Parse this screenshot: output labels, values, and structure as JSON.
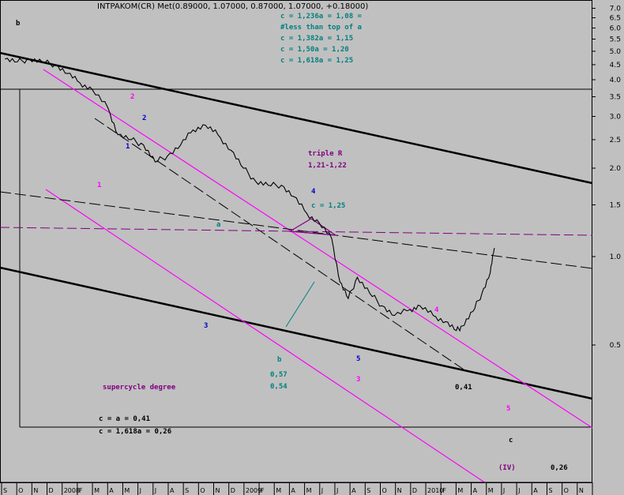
{
  "colors": {
    "background": "#c0c0c0",
    "price": "#000000",
    "channel": "#ff00ff",
    "teal": "#008080",
    "blue": "#0000cc",
    "purple": "#800080"
  },
  "chart_data": {
    "type": "line",
    "title": "INTPAKOM(CR) Met(0.89000, 1.07000, 0.87000, 1.07000, +0.18000)",
    "y_scale": "log",
    "ylim": [
      0.22,
      7.5
    ],
    "xlabel": "",
    "ylabel": "",
    "grid": false,
    "y_ticks": [
      "7.0",
      "6.5",
      "6.0",
      "5.5",
      "5.0",
      "4.5",
      "4.0",
      "3.5",
      "3.0",
      "2.5",
      "2.0",
      "1.5",
      "1.0",
      "0.5"
    ],
    "x_ticks": [
      "S",
      "O",
      "N",
      "D",
      "2008",
      "F",
      "M",
      "A",
      "M",
      "J",
      "J",
      "A",
      "S",
      "O",
      "N",
      "D",
      "2009",
      "F",
      "M",
      "A",
      "M",
      "J",
      "J",
      "A",
      "S",
      "O",
      "N",
      "D",
      "2010",
      "F",
      "M",
      "A",
      "M",
      "J",
      "J",
      "A",
      "S",
      "O",
      "N"
    ],
    "series": [
      {
        "x": [
          "2007-09-05",
          "2007-09-20",
          "2007-10-05",
          "2007-10-20",
          "2007-11-05",
          "2007-11-20",
          "2007-12-05",
          "2007-12-20",
          "2008-01-08",
          "2008-01-20",
          "2008-02-05",
          "2008-02-20",
          "2008-03-05",
          "2008-03-20",
          "2008-04-05",
          "2008-04-20",
          "2008-05-05",
          "2008-05-20",
          "2008-06-05",
          "2008-06-20",
          "2008-07-05",
          "2008-07-20",
          "2008-08-05",
          "2008-08-20",
          "2008-09-05",
          "2008-09-20",
          "2008-10-05",
          "2008-10-15",
          "2008-10-25",
          "2008-11-05",
          "2008-11-20",
          "2008-12-05",
          "2008-12-20",
          "2009-01-08",
          "2009-01-20",
          "2009-02-05",
          "2009-02-20",
          "2009-03-05",
          "2009-03-12",
          "2009-03-25",
          "2009-04-05",
          "2009-04-15",
          "2009-04-20"
        ],
        "values": [
          4.7,
          4.6,
          4.7,
          4.6,
          4.5,
          4.2,
          3.9,
          3.7,
          3.2,
          2.6,
          2.5,
          2.4,
          2.1,
          2.2,
          2.4,
          2.7,
          2.8,
          2.6,
          2.3,
          2.0,
          1.8,
          1.75,
          1.75,
          1.6,
          1.4,
          1.3,
          1.15,
          0.82,
          0.72,
          0.85,
          0.75,
          0.68,
          0.63,
          0.66,
          0.68,
          0.63,
          0.6,
          0.56,
          0.58,
          0.65,
          0.75,
          0.88,
          1.07
        ]
      }
    ],
    "annotations": {
      "b_top": "b",
      "wave2_mag": "2",
      "wave2_blue": "2",
      "wave1_blue": "1",
      "wave1_mag": "1",
      "wave3_blue": "3",
      "wave_a": "a",
      "wave4_blue": "4",
      "wave_b": "b",
      "wave4_mag": "4",
      "wave5_blue": "5",
      "wave3_mag": "3",
      "wave5_mag": "5",
      "wave_c": "c",
      "wave_IV": "(IV)",
      "fib1": "c = 1,236a = 1,08 =",
      "fib2": "#less than top of a",
      "fib3": "c = 1,382a = 1,15",
      "fib4": "c = 1,50a = 1,20",
      "fib5": "c = 1,618a = 1,25",
      "tripleR1": "triple R",
      "tripleR2": "1,21-1,22",
      "c125": "c = 1,25",
      "low1": "0,57",
      "low2": "0,54",
      "degree": "supercycle degree",
      "ca1": "c = a = 0,41",
      "ca2": "c = 1,618a = 0,26",
      "v041": "0,41",
      "v026": "0,26"
    }
  }
}
